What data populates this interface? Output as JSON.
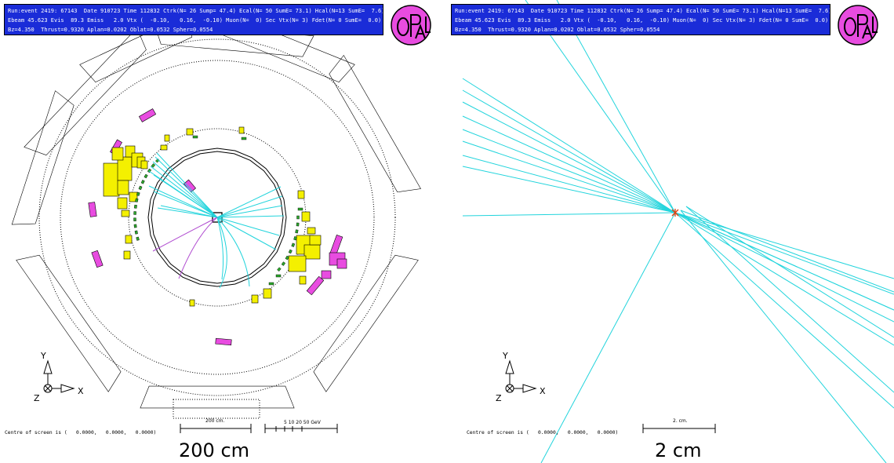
{
  "header": {
    "line1": "Run:event 2419: 67143  Date 910723 Time 112832 Ctrk(N= 26 Sump= 47.4) Ecal(N= 50 SumE= 73.1) Hcal(N=13 SumE=  7.6)",
    "line2": "Ebeam 45.623 Evis  89.3 Emiss   2.0 Vtx (  -0.10,   0.16,  -0.10) Muon(N=  0) Sec Vtx(N= 3) Fdet(N= 0 SumE=  0.0)",
    "line3": "Bz=4.350  Thrust=0.9320 Aplan=0.0202 Oblat=0.0532 Spher=0.0554"
  },
  "axes": {
    "y": "Y",
    "x": "X",
    "z": "Z"
  },
  "centre_text": "Centre of screen is (   0.0000,   0.0000,   0.0000)",
  "left": {
    "scale_bar_label": "200  cm.",
    "energy_scale_label": "5  10   20      50  GeV",
    "big_label": "200 cm"
  },
  "right": {
    "scale_bar_label": "2. cm.",
    "big_label": "2 cm"
  },
  "colors": {
    "header_bg": "#1a2cd8",
    "track": "#22d4dc",
    "track_curved": "#b04cd0",
    "ecal": "#f4f000",
    "hcal": "#e84ce0",
    "muon": "#2ca82c",
    "vertex": "#e04010"
  }
}
